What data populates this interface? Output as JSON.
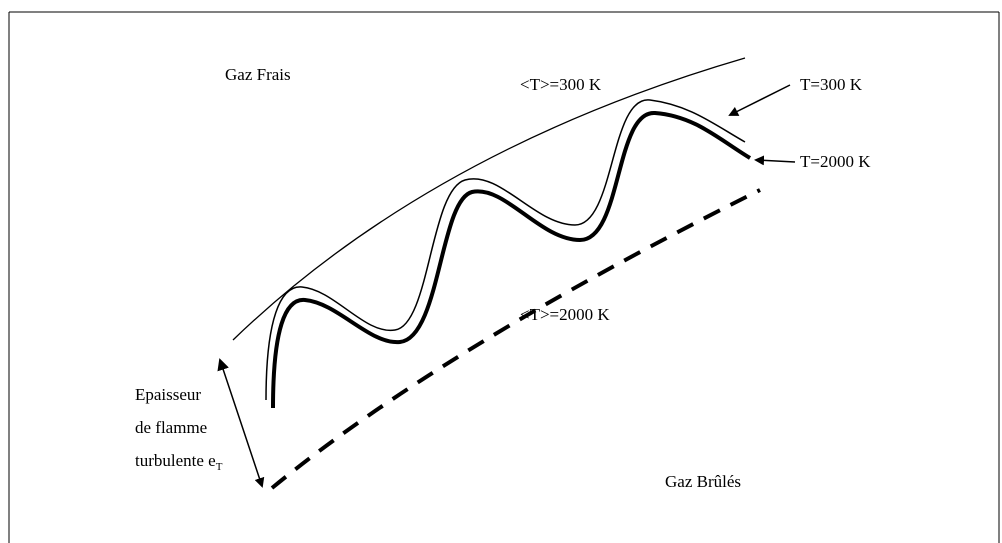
{
  "labels": {
    "fresh_gas": "Gaz Frais",
    "mean_300": "<T>=300 K",
    "t_300": "T=300 K",
    "t_2000": "T=2000 K",
    "mean_2000": "<T>=2000 K",
    "burnt_gas": "Gaz Brûlés"
  },
  "thickness": {
    "lines": [
      "Epaisseur",
      "de flamme",
      "turbulente e"
    ],
    "subscript": "T"
  }
}
